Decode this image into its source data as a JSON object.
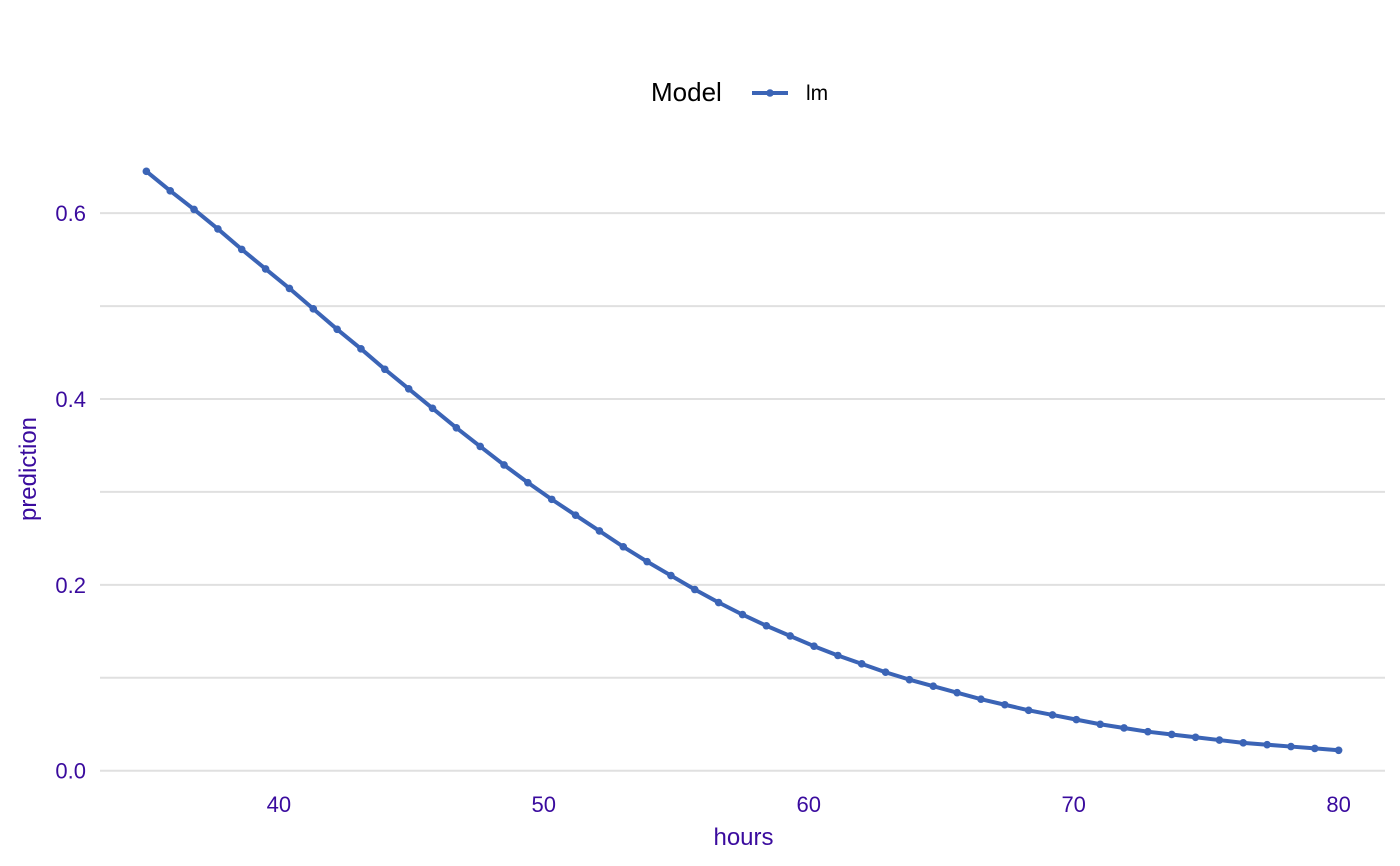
{
  "chart_data": {
    "type": "line",
    "title": "",
    "xlabel": "hours",
    "ylabel": "prediction",
    "xlim": [
      33.25,
      81.75
    ],
    "ylim": [
      -0.0315,
      0.6787
    ],
    "x_ticks": [
      40,
      50,
      60,
      70,
      80
    ],
    "x_tick_labels": [
      "40",
      "50",
      "60",
      "70",
      "80"
    ],
    "y_ticks": [
      0.0,
      0.2,
      0.4,
      0.6
    ],
    "y_tick_labels": [
      "0.0",
      "0.2",
      "0.4",
      "0.6"
    ],
    "y_minor_gridlines": [
      0.1,
      0.3,
      0.5
    ],
    "grid": "horizontal",
    "legend": {
      "title": "Model",
      "position": "top"
    },
    "colors": {
      "axis_text": "#3a0b9e",
      "grid": "#e0e0e0",
      "series": "#3b64b6"
    },
    "series": [
      {
        "name": "lm",
        "color": "#3b64b6",
        "x": [
          35.0,
          35.9,
          36.8,
          37.7,
          38.6,
          39.5,
          40.4,
          41.3,
          42.2,
          43.1,
          44.0,
          44.9,
          45.8,
          46.7,
          47.6,
          48.5,
          49.4,
          50.3,
          51.2,
          52.1,
          53.0,
          53.9,
          54.8,
          55.7,
          56.6,
          57.5,
          58.4,
          59.3,
          60.2,
          61.1,
          62.0,
          62.9,
          63.8,
          64.7,
          65.6,
          66.5,
          67.4,
          68.3,
          69.2,
          70.1,
          71.0,
          71.9,
          72.8,
          73.7,
          74.6,
          75.5,
          76.4,
          77.3,
          78.2,
          79.1,
          80.0
        ],
        "y": [
          0.645,
          0.624,
          0.604,
          0.583,
          0.561,
          0.54,
          0.519,
          0.497,
          0.475,
          0.454,
          0.432,
          0.411,
          0.39,
          0.369,
          0.349,
          0.329,
          0.31,
          0.292,
          0.275,
          0.258,
          0.241,
          0.225,
          0.21,
          0.195,
          0.181,
          0.168,
          0.156,
          0.145,
          0.134,
          0.124,
          0.115,
          0.106,
          0.098,
          0.091,
          0.084,
          0.077,
          0.071,
          0.065,
          0.06,
          0.055,
          0.05,
          0.046,
          0.042,
          0.039,
          0.036,
          0.033,
          0.03,
          0.028,
          0.026,
          0.024,
          0.022
        ]
      }
    ]
  }
}
